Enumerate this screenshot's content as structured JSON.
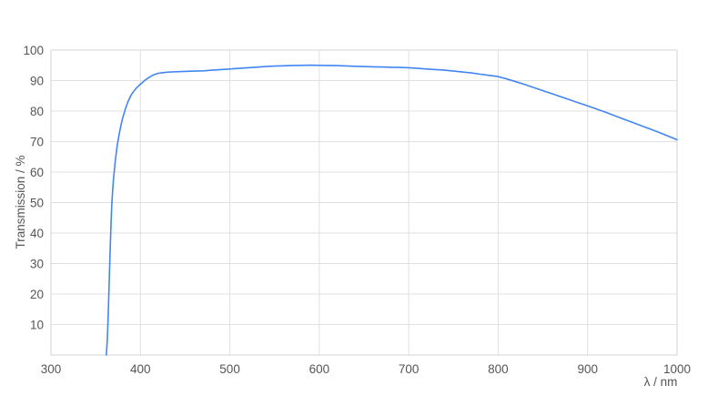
{
  "chart_data": {
    "type": "line",
    "title": "",
    "xlabel": "λ / nm",
    "ylabel": "Transmission / %",
    "xlim": [
      300,
      1000
    ],
    "ylim": [
      0,
      100
    ],
    "xticks": [
      300,
      400,
      500,
      600,
      700,
      800,
      900,
      1000
    ],
    "yticks": [
      10,
      20,
      30,
      40,
      50,
      60,
      70,
      80,
      90,
      100
    ],
    "grid": true,
    "legend_position": "none",
    "background_color": "#ffffff",
    "grid_color": "#e0e0e0",
    "axis_color": "#d6d6d6",
    "tick_label_color": "#555555",
    "series": [
      {
        "color": "#4285f4",
        "points": [
          [
            362,
            0
          ],
          [
            363,
            5
          ],
          [
            364,
            13
          ],
          [
            365,
            23
          ],
          [
            366,
            33
          ],
          [
            367,
            42
          ],
          [
            368,
            49
          ],
          [
            369,
            54
          ],
          [
            370,
            58
          ],
          [
            372,
            64
          ],
          [
            374,
            68.5
          ],
          [
            376,
            72
          ],
          [
            378,
            75
          ],
          [
            380,
            77.5
          ],
          [
            383,
            80.5
          ],
          [
            386,
            83
          ],
          [
            390,
            85.5
          ],
          [
            395,
            87.4
          ],
          [
            400,
            88.8
          ],
          [
            405,
            90.1
          ],
          [
            410,
            91.1
          ],
          [
            415,
            91.9
          ],
          [
            420,
            92.4
          ],
          [
            425,
            92.6
          ],
          [
            430,
            92.75
          ],
          [
            435,
            92.85
          ],
          [
            440,
            92.9
          ],
          [
            450,
            93.0
          ],
          [
            460,
            93.1
          ],
          [
            470,
            93.2
          ],
          [
            480,
            93.4
          ],
          [
            490,
            93.6
          ],
          [
            500,
            93.8
          ],
          [
            510,
            94.0
          ],
          [
            520,
            94.2
          ],
          [
            530,
            94.4
          ],
          [
            540,
            94.6
          ],
          [
            550,
            94.75
          ],
          [
            560,
            94.85
          ],
          [
            570,
            94.95
          ],
          [
            580,
            95.0
          ],
          [
            590,
            95.05
          ],
          [
            600,
            95.0
          ],
          [
            610,
            94.95
          ],
          [
            620,
            94.9
          ],
          [
            630,
            94.8
          ],
          [
            640,
            94.7
          ],
          [
            650,
            94.6
          ],
          [
            660,
            94.5
          ],
          [
            670,
            94.45
          ],
          [
            680,
            94.35
          ],
          [
            690,
            94.3
          ],
          [
            700,
            94.2
          ],
          [
            710,
            94.0
          ],
          [
            720,
            93.8
          ],
          [
            730,
            93.6
          ],
          [
            740,
            93.4
          ],
          [
            750,
            93.1
          ],
          [
            760,
            92.8
          ],
          [
            770,
            92.5
          ],
          [
            780,
            92.1
          ],
          [
            790,
            91.7
          ],
          [
            800,
            91.3
          ],
          [
            810,
            90.5
          ],
          [
            820,
            89.6
          ],
          [
            830,
            88.7
          ],
          [
            840,
            87.7
          ],
          [
            850,
            86.7
          ],
          [
            860,
            85.7
          ],
          [
            870,
            84.7
          ],
          [
            880,
            83.7
          ],
          [
            890,
            82.7
          ],
          [
            900,
            81.7
          ],
          [
            910,
            80.7
          ],
          [
            920,
            79.6
          ],
          [
            930,
            78.5
          ],
          [
            940,
            77.4
          ],
          [
            950,
            76.3
          ],
          [
            960,
            75.2
          ],
          [
            970,
            74.1
          ],
          [
            980,
            73.0
          ],
          [
            990,
            71.8
          ],
          [
            1000,
            70.6
          ]
        ]
      }
    ]
  }
}
